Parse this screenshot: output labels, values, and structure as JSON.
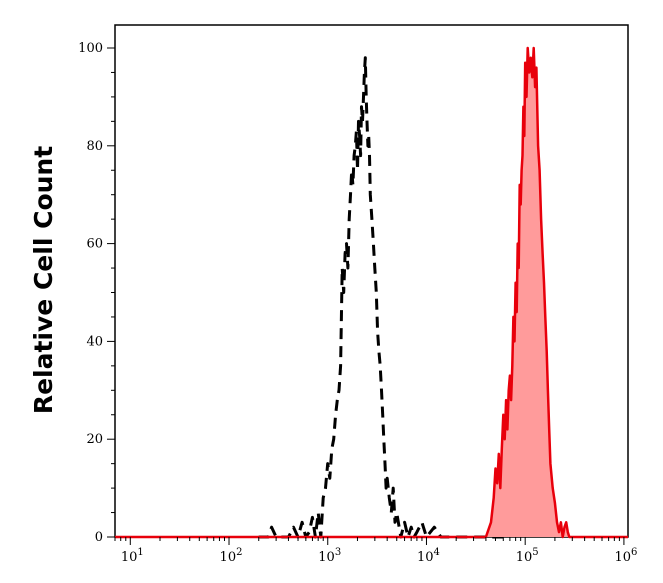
{
  "chart_data": {
    "type": "area",
    "xlabel": "",
    "ylabel": "Relative Cell Count",
    "x_scale": "log",
    "xlim": [
      7,
      1100000
    ],
    "ylim": [
      0,
      100
    ],
    "x_ticks": [
      {
        "value": 10,
        "base": "10",
        "exp": "1"
      },
      {
        "value": 100,
        "base": "10",
        "exp": "2"
      },
      {
        "value": 1000,
        "base": "10",
        "exp": "3"
      },
      {
        "value": 10000,
        "base": "10",
        "exp": "4"
      },
      {
        "value": 100000,
        "base": "10",
        "exp": "5"
      },
      {
        "value": 1000000,
        "base": "10",
        "exp": "6"
      }
    ],
    "y_ticks": [
      0,
      20,
      40,
      60,
      80,
      100
    ],
    "grid": false,
    "legend": "none",
    "series": [
      {
        "style": "dashed-line",
        "color": "#000000",
        "x": [
          200,
          250,
          270,
          300,
          350,
          400,
          450,
          500,
          550,
          600,
          650,
          700,
          750,
          800,
          850,
          900,
          950,
          1000,
          1050,
          1100,
          1150,
          1200,
          1250,
          1300,
          1350,
          1400,
          1450,
          1500,
          1550,
          1600,
          1650,
          1700,
          1750,
          1800,
          1850,
          1900,
          1950,
          2000,
          2050,
          2100,
          2150,
          2200,
          2250,
          2300,
          2350,
          2400,
          2450,
          2500,
          2550,
          2600,
          2650,
          2700,
          2800,
          2900,
          3000,
          3100,
          3200,
          3300,
          3400,
          3500,
          3600,
          3700,
          3800,
          3900,
          4000,
          4200,
          4400,
          4600,
          4800,
          5000,
          5500,
          6000,
          6500,
          7000,
          7500,
          8000,
          9000,
          10000,
          12000,
          14000,
          17000,
          20000,
          25000,
          30000,
          40000,
          50000,
          60000
        ],
        "values": [
          0,
          0,
          2,
          0,
          0,
          0,
          2,
          0,
          3,
          0,
          1,
          4,
          0,
          5,
          0,
          8,
          10,
          15,
          12,
          18,
          20,
          25,
          28,
          30,
          35,
          55,
          50,
          58,
          60,
          55,
          65,
          70,
          75,
          72,
          78,
          80,
          83,
          75,
          85,
          82,
          78,
          88,
          85,
          90,
          95,
          98,
          90,
          85,
          80,
          82,
          78,
          70,
          65,
          60,
          55,
          50,
          42,
          38,
          35,
          30,
          25,
          20,
          15,
          10,
          12,
          8,
          5,
          10,
          3,
          5,
          0,
          3,
          0,
          2,
          0,
          1,
          3,
          0,
          2,
          0,
          0,
          0,
          0,
          0,
          0,
          0,
          0
        ]
      },
      {
        "style": "filled",
        "color": "#e8000b",
        "fill": "#ff9b9b",
        "x": [
          7,
          40000,
          45000,
          48000,
          50000,
          52000,
          54000,
          56000,
          58000,
          60000,
          62000,
          64000,
          66000,
          68000,
          70000,
          72000,
          74000,
          76000,
          78000,
          80000,
          82000,
          84000,
          86000,
          88000,
          90000,
          92000,
          94000,
          96000,
          98000,
          100000,
          103000,
          106000,
          110000,
          114000,
          118000,
          122000,
          126000,
          130000,
          135000,
          140000,
          145000,
          150000,
          155000,
          160000,
          165000,
          170000,
          175000,
          180000,
          190000,
          200000,
          210000,
          220000,
          230000,
          240000,
          250000,
          260000,
          270000,
          280000,
          300000,
          1100000
        ],
        "values": [
          0,
          0,
          3,
          8,
          14,
          11,
          17,
          10,
          18,
          25,
          20,
          28,
          22,
          30,
          33,
          28,
          35,
          45,
          40,
          52,
          46,
          60,
          55,
          72,
          68,
          75,
          78,
          88,
          82,
          97,
          90,
          100,
          95,
          98,
          94,
          100,
          92,
          96,
          80,
          75,
          65,
          58,
          52,
          45,
          38,
          30,
          22,
          15,
          10,
          7,
          3,
          1,
          3,
          0,
          2,
          3,
          1,
          0,
          0,
          0
        ]
      }
    ]
  }
}
